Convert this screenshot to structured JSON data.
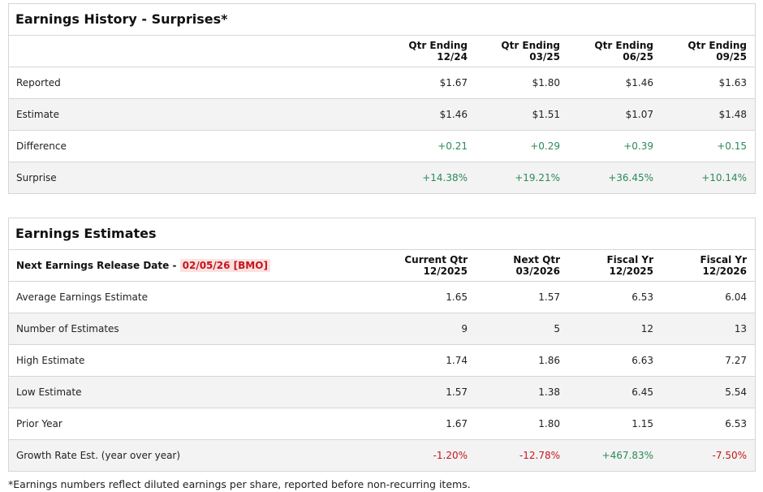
{
  "history": {
    "title": "Earnings History - Surprises*",
    "columns": [
      [
        "Qtr Ending",
        "12/24"
      ],
      [
        "Qtr Ending",
        "03/25"
      ],
      [
        "Qtr Ending",
        "06/25"
      ],
      [
        "Qtr Ending",
        "09/25"
      ]
    ],
    "rows": [
      {
        "label": "Reported",
        "values": [
          "$1.67",
          "$1.80",
          "$1.46",
          "$1.63"
        ],
        "tone": ""
      },
      {
        "label": "Estimate",
        "values": [
          "$1.46",
          "$1.51",
          "$1.07",
          "$1.48"
        ],
        "tone": ""
      },
      {
        "label": "Difference",
        "values": [
          "+0.21",
          "+0.29",
          "+0.39",
          "+0.15"
        ],
        "tone": "pos"
      },
      {
        "label": "Surprise",
        "values": [
          "+14.38%",
          "+19.21%",
          "+36.45%",
          "+10.14%"
        ],
        "tone": "pos"
      }
    ]
  },
  "estimates": {
    "title": "Earnings Estimates",
    "release_label": "Next Earnings Release Date -",
    "release_date": "02/05/26 [BMO]",
    "columns": [
      [
        "Current Qtr",
        "12/2025"
      ],
      [
        "Next Qtr",
        "03/2026"
      ],
      [
        "Fiscal Yr",
        "12/2025"
      ],
      [
        "Fiscal Yr",
        "12/2026"
      ]
    ],
    "rows": [
      {
        "label": "Average Earnings Estimate",
        "values": [
          "1.65",
          "1.57",
          "6.53",
          "6.04"
        ]
      },
      {
        "label": "Number of Estimates",
        "values": [
          "9",
          "5",
          "12",
          "13"
        ]
      },
      {
        "label": "High Estimate",
        "values": [
          "1.74",
          "1.86",
          "6.63",
          "7.27"
        ]
      },
      {
        "label": "Low Estimate",
        "values": [
          "1.57",
          "1.38",
          "6.45",
          "5.54"
        ]
      },
      {
        "label": "Prior Year",
        "values": [
          "1.67",
          "1.80",
          "1.15",
          "6.53"
        ]
      },
      {
        "label": "Growth Rate Est. (year over year)",
        "values": [
          "-1.20%",
          "-12.78%",
          "+467.83%",
          "-7.50%"
        ],
        "tones": [
          "neg",
          "neg",
          "pos",
          "neg"
        ]
      }
    ]
  },
  "footnote": "*Earnings numbers reflect diluted earnings per share, reported before non-recurring items.",
  "colors": {
    "positive": "#2a8a5a",
    "negative": "#c4161c",
    "stripe": "#f3f3f3",
    "border": "#d6d6d6"
  }
}
